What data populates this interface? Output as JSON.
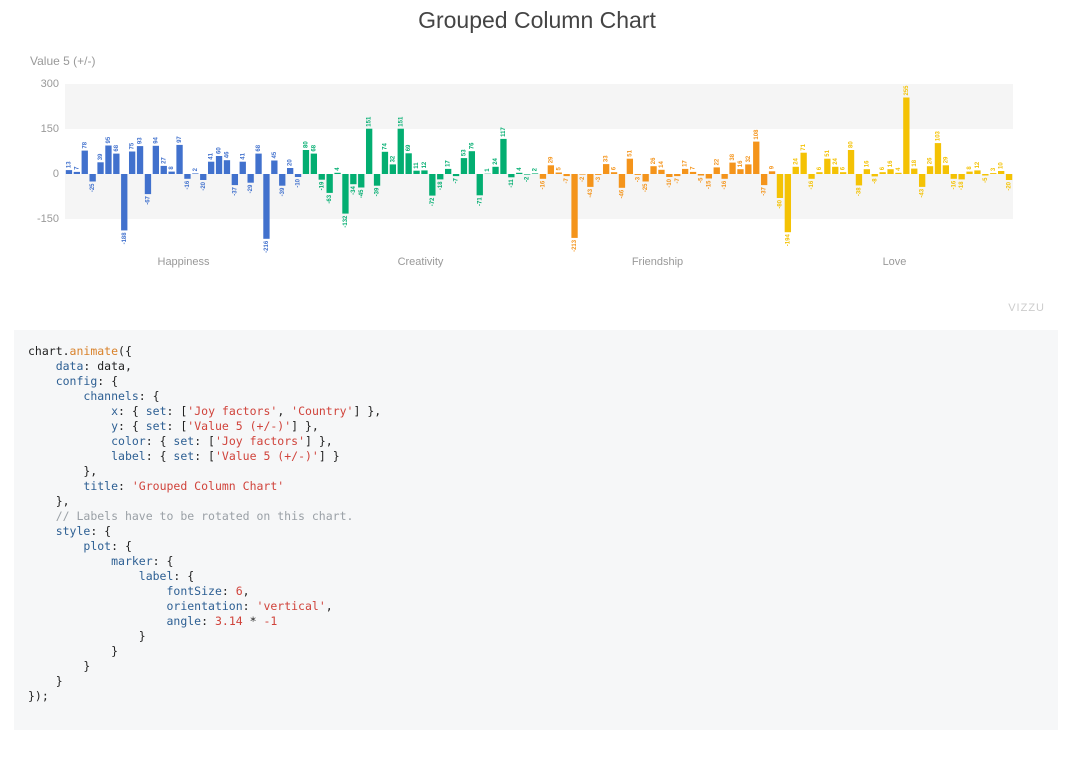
{
  "chart_data": {
    "type": "bar",
    "title": "Grouped Column Chart",
    "y_label": "Value 5 (+/-)",
    "ylim": [
      -150,
      300
    ],
    "yticks": [
      -150,
      0,
      150,
      300
    ],
    "series": [
      {
        "name": "Happiness",
        "color": "#4171cd",
        "values": [
          13,
          7,
          78,
          -25,
          39,
          95,
          68,
          -188,
          75,
          93,
          -67,
          94,
          27,
          8,
          97,
          -16,
          2,
          -20,
          41,
          60,
          46,
          -37,
          41,
          -29,
          68,
          -216,
          45,
          -39,
          20,
          -10
        ]
      },
      {
        "name": "Creativity",
        "color": "#03ae71",
        "values": [
          80,
          68,
          -19,
          -63,
          4,
          -132,
          -34,
          -45,
          151,
          -39,
          74,
          32,
          151,
          69,
          11,
          12,
          -72,
          -18,
          17,
          -7,
          53,
          76,
          -71,
          1,
          24,
          117,
          -11,
          4,
          -2,
          2
        ]
      },
      {
        "name": "Friendship",
        "color": "#f4941b",
        "values": [
          -16,
          29,
          5,
          -7,
          -213,
          -2,
          -43,
          -3,
          33,
          6,
          -46,
          51,
          -3,
          -25,
          26,
          14,
          -10,
          -7,
          17,
          7,
          -5,
          -15,
          22,
          -16,
          38,
          16,
          32,
          108,
          -37,
          9
        ]
      },
      {
        "name": "Love",
        "color": "#f4c204",
        "values": [
          -80,
          -194,
          24,
          71,
          -16,
          6,
          51,
          24,
          6,
          80,
          -38,
          16,
          -8,
          6,
          16,
          4,
          255,
          18,
          -43,
          26,
          103,
          29,
          -16,
          -18,
          8,
          12,
          -5,
          3,
          10,
          -20
        ]
      }
    ]
  },
  "watermark": "VIZZU",
  "code": [
    "chart.animate({",
    "    data: data,",
    "    config: {",
    "        channels: {",
    "            x: { set: ['Joy factors', 'Country'] },",
    "            y: { set: ['Value 5 (+/-)'] },",
    "            color: { set: ['Joy factors'] },",
    "            label: { set: ['Value 5 (+/-)'] }",
    "        },",
    "        title: 'Grouped Column Chart'",
    "    },",
    "    // Labels have to be rotated on this chart.",
    "    style: {",
    "        plot: {",
    "            marker: {",
    "                label: {",
    "                    fontSize: 6,",
    "                    orientation: 'vertical',",
    "                    angle: 3.14 * -1",
    "                }",
    "            }",
    "        }",
    "    }",
    "});"
  ]
}
